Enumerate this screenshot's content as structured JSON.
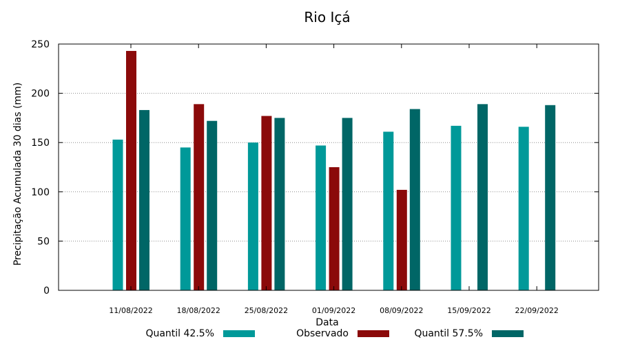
{
  "chart_data": {
    "type": "bar",
    "title": "Rio Içá",
    "xlabel": "Data",
    "ylabel": "Precipitação Acumulada 30 dias (mm)",
    "ylim": [
      0,
      250
    ],
    "yticks": [
      0,
      50,
      100,
      150,
      200,
      250
    ],
    "grid": true,
    "legend_position": "bottom",
    "categories": [
      "11/08/2022",
      "18/08/2022",
      "25/08/2022",
      "01/09/2022",
      "08/09/2022",
      "15/09/2022",
      "22/09/2022"
    ],
    "series": [
      {
        "name": "Quantil 42.5%",
        "color": "#009999",
        "values": [
          153,
          145,
          150,
          147,
          161,
          167,
          166
        ]
      },
      {
        "name": "Observado",
        "color": "#8b0a0a",
        "values": [
          243,
          189,
          177,
          125,
          102,
          null,
          null
        ]
      },
      {
        "name": "Quantil 57.5%",
        "color": "#006666",
        "values": [
          183,
          172,
          175,
          175,
          184,
          189,
          188
        ]
      }
    ]
  }
}
